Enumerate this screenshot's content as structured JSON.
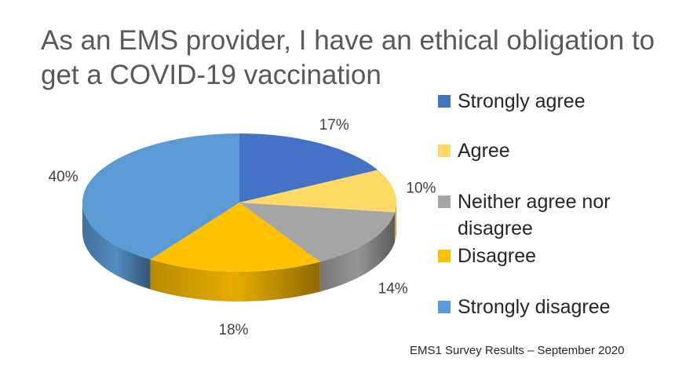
{
  "chart_data": {
    "type": "pie",
    "title": "As an EMS provider, I have an ethical obligation to get a COVID-19 vaccination",
    "slices": [
      {
        "label": "Strongly agree",
        "value": 17,
        "value_label": "17%",
        "color": "#4472C4"
      },
      {
        "label": "Agree",
        "value": 10,
        "value_label": "10%",
        "color": "#FFD966"
      },
      {
        "label": "Neither agree nor disagree",
        "value": 14,
        "value_label": "14%",
        "color": "#A5A5A5"
      },
      {
        "label": "Disagree",
        "value": 18,
        "value_label": "18%",
        "color": "#FFC000"
      },
      {
        "label": "Strongly disagree",
        "value": 40,
        "value_label": "40%",
        "color": "#5B9BD5"
      }
    ],
    "legend_position": "right",
    "style": "3d"
  },
  "footer": {
    "source": "EMS1 Survey Results – September 2020"
  }
}
